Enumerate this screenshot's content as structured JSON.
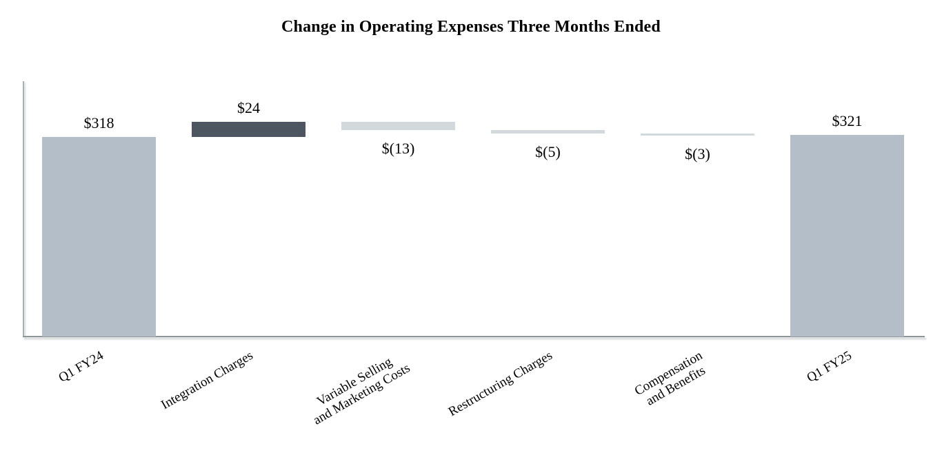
{
  "chart_data": {
    "type": "bar",
    "subtype": "waterfall",
    "title": "Change in Operating Expenses Three Months Ended",
    "categories": [
      "Q1 FY24",
      "Integration Charges",
      "Variable Selling and Marketing Costs",
      "Restructuring Charges",
      "Compensation and Benefits",
      "Q1 FY25"
    ],
    "values": [
      318,
      24,
      -13,
      -5,
      -3,
      321
    ],
    "bars": [
      {
        "category": "Q1 FY24",
        "label_lines": [
          "Q1 FY24"
        ],
        "value": 318,
        "display": "$318",
        "role": "total",
        "start": 0,
        "end": 318,
        "value_label_position": "above"
      },
      {
        "category": "Integration Charges",
        "label_lines": [
          "Integration Charges"
        ],
        "value": 24,
        "display": "$24",
        "role": "increase",
        "start": 318,
        "end": 342,
        "value_label_position": "above"
      },
      {
        "category": "Variable Selling and Marketing Costs",
        "label_lines": [
          "Variable Selling",
          "and Marketing Costs"
        ],
        "value": -13,
        "display": "$(13)",
        "role": "decrease",
        "start": 342,
        "end": 329,
        "value_label_position": "below"
      },
      {
        "category": "Restructuring Charges",
        "label_lines": [
          "Restructuring Charges"
        ],
        "value": -5,
        "display": "$(5)",
        "role": "decrease",
        "start": 329,
        "end": 324,
        "value_label_position": "below"
      },
      {
        "category": "Compensation and Benefits",
        "label_lines": [
          "Compensation",
          "and Benefits"
        ],
        "value": -3,
        "display": "$(3)",
        "role": "decrease",
        "start": 324,
        "end": 321,
        "value_label_position": "below"
      },
      {
        "category": "Q1 FY25",
        "label_lines": [
          "Q1 FY25"
        ],
        "value": 321,
        "display": "$321",
        "role": "total",
        "start": 0,
        "end": 321,
        "value_label_position": "above"
      }
    ],
    "colors": {
      "total": "#b3bec9",
      "increase": "#4d5560",
      "decrease": "#d2d9dd",
      "x_axis_line": "#8f9496",
      "y_axis_line": "#a9aeb0",
      "text": "#000000"
    },
    "axis": {
      "baseline_value": 0,
      "gridlines": false,
      "y_tick_labels": false,
      "legend": false,
      "category_label_rotation_deg": -30
    }
  }
}
